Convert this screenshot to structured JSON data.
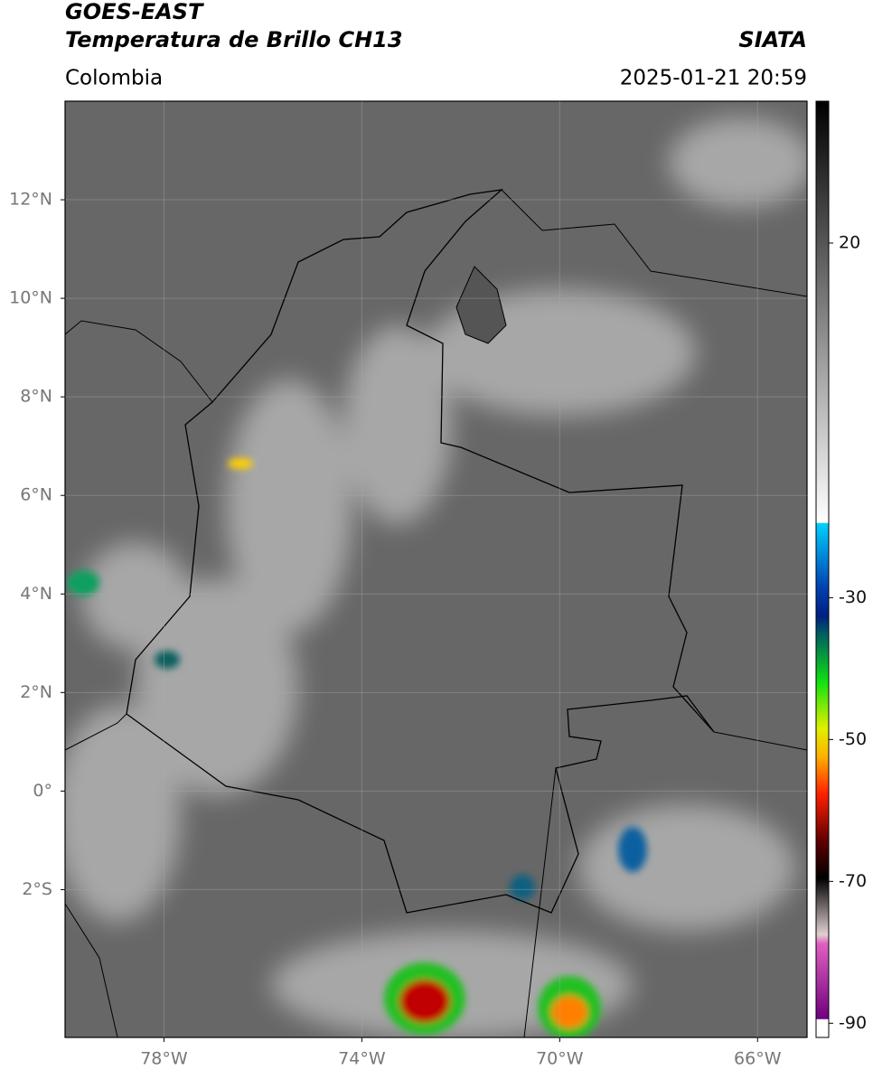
{
  "header": {
    "source": "GOES-EAST",
    "product": "Temperatura de Brillo CH13",
    "agency": "SIATA",
    "region": "Colombia",
    "datetime": "2025-01-21 20:59"
  },
  "map": {
    "xlim": [
      -80,
      -65
    ],
    "ylim": [
      -5,
      14
    ],
    "xticks": [
      {
        "value": -78,
        "label": "78°W"
      },
      {
        "value": -74,
        "label": "74°W"
      },
      {
        "value": -70,
        "label": "70°W"
      },
      {
        "value": -66,
        "label": "66°W"
      }
    ],
    "yticks": [
      {
        "value": 12,
        "label": "12°N"
      },
      {
        "value": 10,
        "label": "10°N"
      },
      {
        "value": 8,
        "label": "8°N"
      },
      {
        "value": 6,
        "label": "6°N"
      },
      {
        "value": 4,
        "label": "4°N"
      },
      {
        "value": 2,
        "label": "2°N"
      },
      {
        "value": 0,
        "label": "0°"
      },
      {
        "value": -2,
        "label": "2°S"
      }
    ],
    "grid": true
  },
  "colorbar": {
    "lim": [
      -92,
      40
    ],
    "ticks": [
      20,
      -30,
      -50,
      -70,
      -90
    ]
  }
}
